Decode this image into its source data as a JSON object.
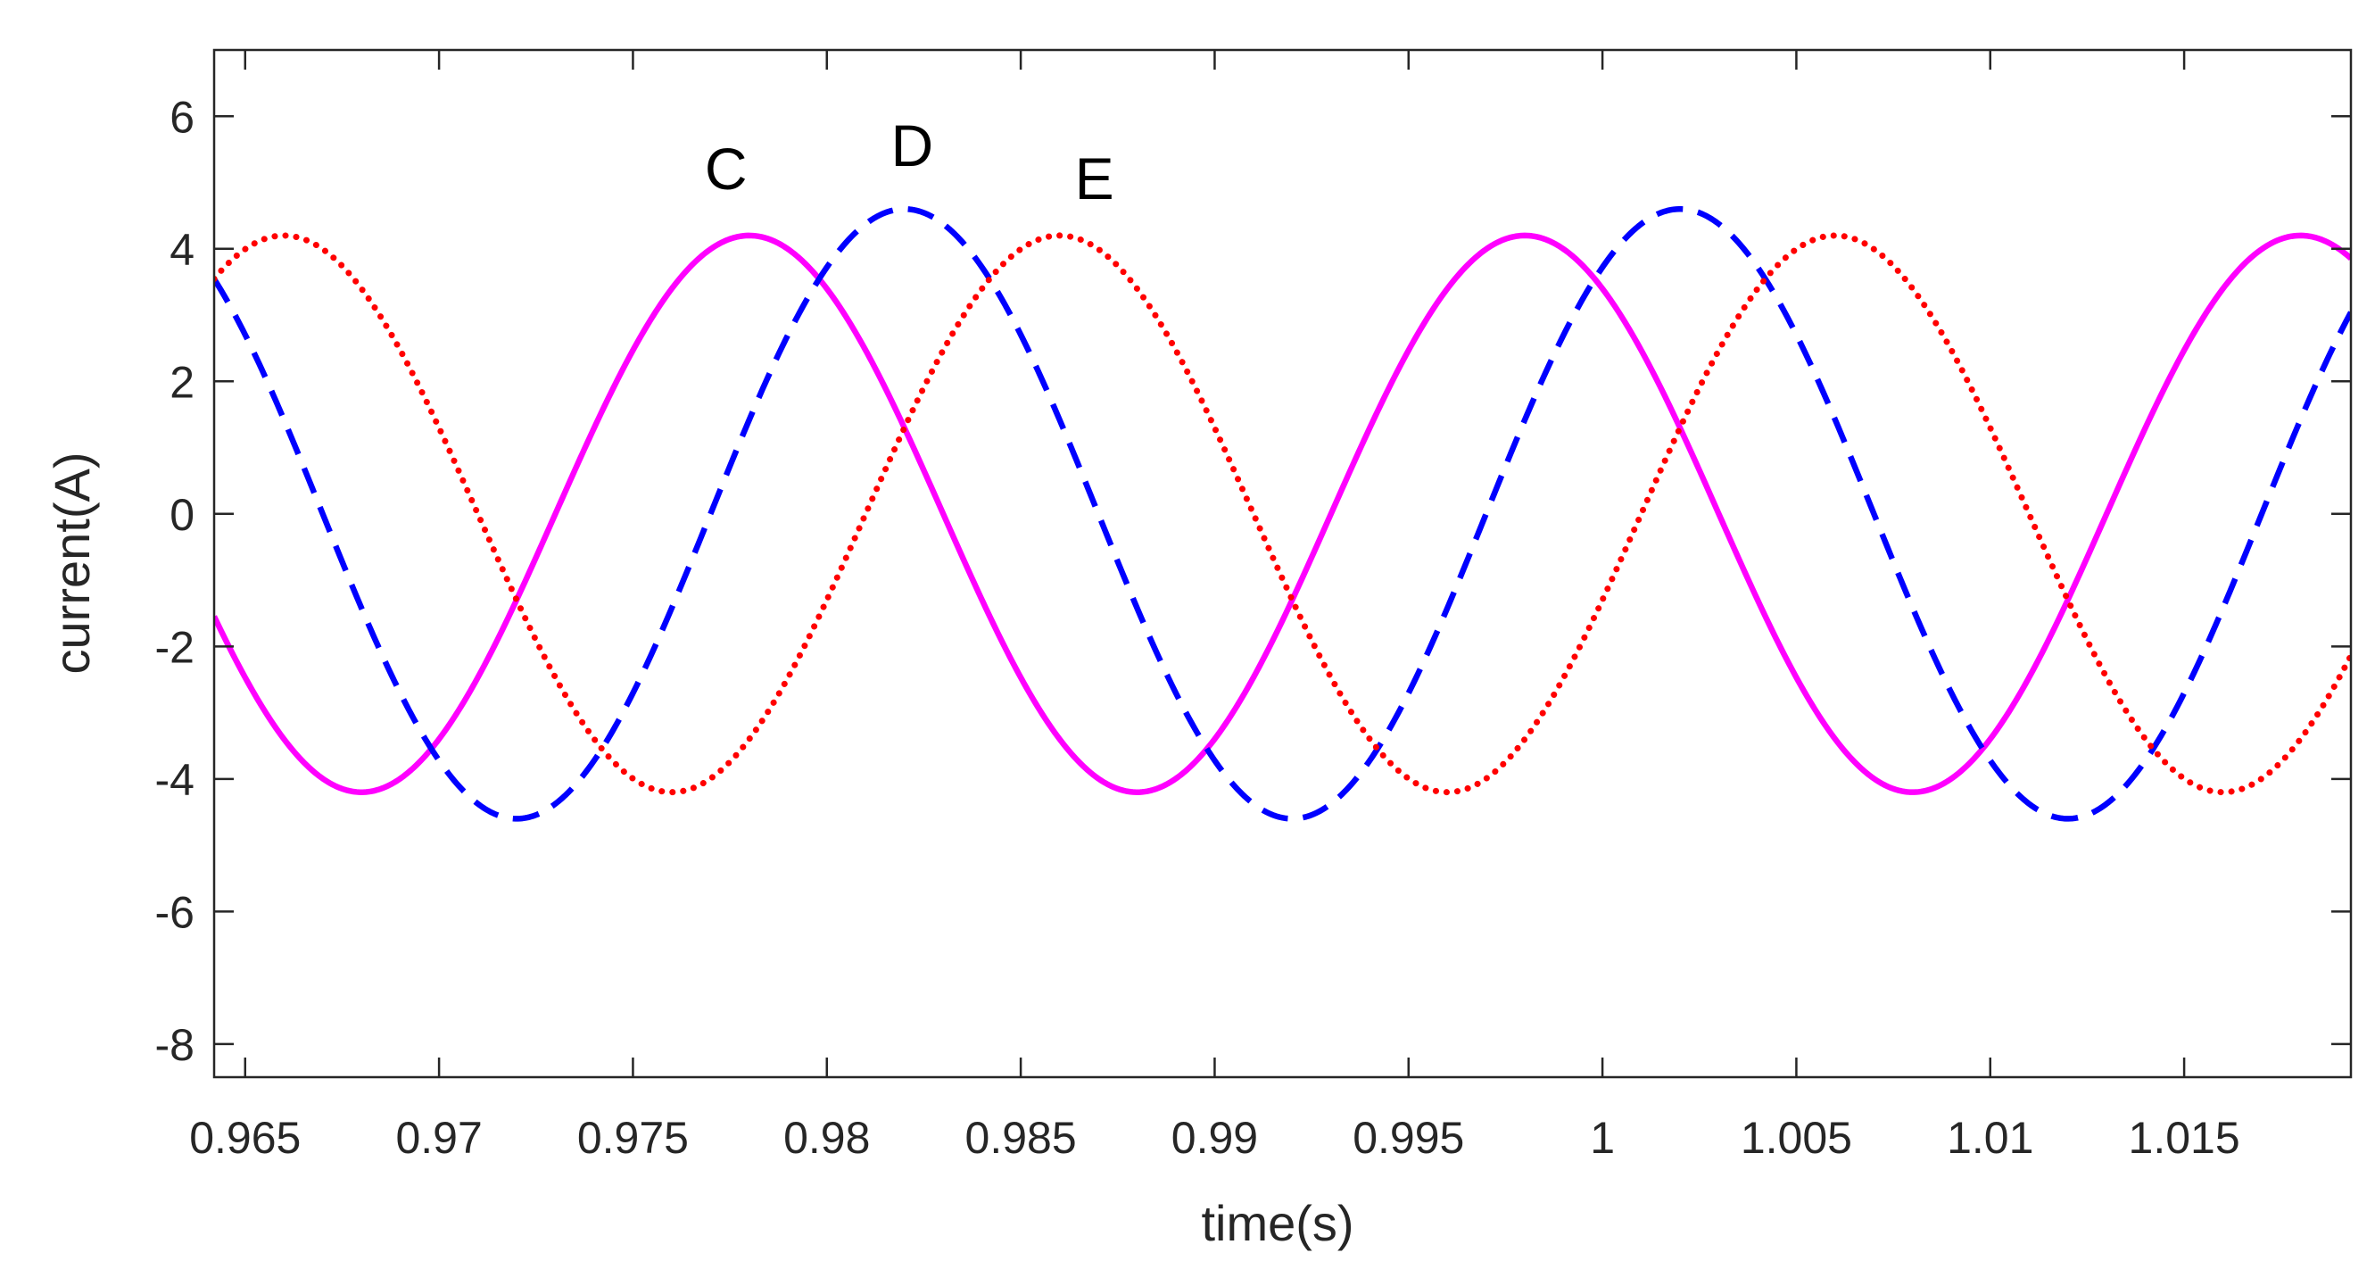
{
  "chart_data": {
    "type": "line",
    "title": "",
    "xlabel": "time(s)",
    "ylabel": "current(A)",
    "xlim": [
      0.9642,
      1.0193
    ],
    "ylim": [
      -8.5,
      7
    ],
    "xticks": [
      0.965,
      0.97,
      0.975,
      0.98,
      0.985,
      0.99,
      0.995,
      1,
      1.005,
      1.01,
      1.015
    ],
    "xtick_labels": [
      "0.965",
      "0.97",
      "0.975",
      "0.98",
      "0.985",
      "0.99",
      "0.995",
      "1",
      "1.005",
      "1.01",
      "1.015"
    ],
    "yticks": [
      -8,
      -6,
      -4,
      -2,
      0,
      2,
      4,
      6
    ],
    "ytick_labels": [
      "-8",
      "-6",
      "-4",
      "-2",
      "0",
      "2",
      "4",
      "6"
    ],
    "grid": false,
    "period_s": 0.02,
    "series": [
      {
        "name": "C",
        "style": "solid",
        "color": "#ff00ff",
        "amplitude": 4.2,
        "peak_time": 0.978
      },
      {
        "name": "D",
        "style": "dashed",
        "color": "#0000ff",
        "amplitude": 4.6,
        "peak_time": 0.982
      },
      {
        "name": "E",
        "style": "dotted",
        "color": "#ff0000",
        "amplitude": 4.2,
        "peak_time": 0.986
      }
    ],
    "annotations": [
      {
        "text": "C",
        "x": 0.9774,
        "y": 4.9
      },
      {
        "text": "D",
        "x": 0.9822,
        "y": 5.25
      },
      {
        "text": "E",
        "x": 0.9869,
        "y": 4.75
      }
    ]
  }
}
